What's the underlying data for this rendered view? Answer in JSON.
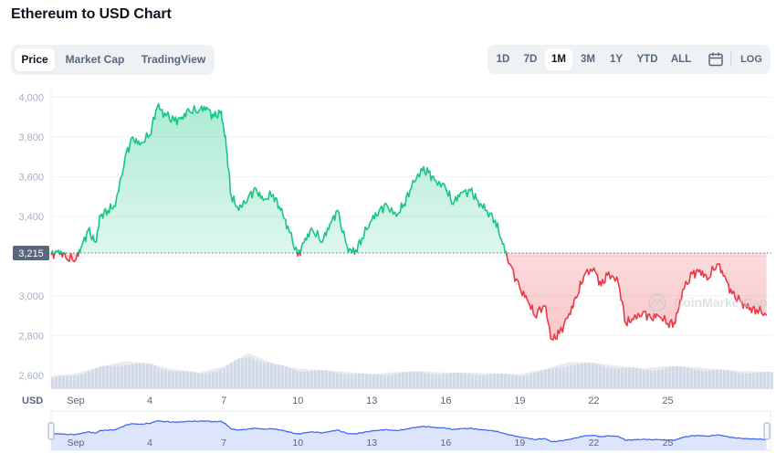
{
  "title": "Ethereum to USD Chart",
  "tabs": [
    "Price",
    "Market Cap",
    "TradingView"
  ],
  "active_tab": "Price",
  "ranges": [
    "1D",
    "7D",
    "1M",
    "3M",
    "1Y",
    "YTD",
    "ALL"
  ],
  "active_range": "1M",
  "log_label": "LOG",
  "icons": {
    "calendar": "calendar-icon",
    "watermark": "coinmarketcap-logo"
  },
  "watermark_text": "CoinMarketCap",
  "colors": {
    "up": "#16c784",
    "down": "#ea3943",
    "volume": "#cfd6e4",
    "navigator": "#d6e0fb",
    "navigator_line": "#3861fb"
  },
  "chart_data": {
    "type": "line",
    "currency_label": "USD",
    "reference_price": 3215,
    "reference_label": "3,215",
    "ylim": [
      2530,
      4020
    ],
    "yticks": [
      2600,
      2800,
      3000,
      3200,
      3400,
      3600,
      3800,
      4000
    ],
    "ytick_labels": [
      "2,600",
      "2,800",
      "3,000",
      "3,200",
      "3,400",
      "3,600",
      "3,800",
      "4,000"
    ],
    "xlim": [
      0,
      29.2
    ],
    "xticks": [
      1,
      4,
      7,
      10,
      13,
      16,
      19,
      22,
      25
    ],
    "xtick_labels": [
      "Sep",
      "4",
      "7",
      "10",
      "13",
      "16",
      "19",
      "22",
      "25"
    ],
    "price": {
      "x": [
        0,
        0.3,
        0.6,
        1.0,
        1.2,
        1.5,
        1.8,
        2.0,
        2.3,
        2.6,
        3.0,
        3.3,
        3.6,
        4.0,
        4.3,
        4.6,
        5.0,
        5.3,
        5.6,
        6.0,
        6.3,
        6.6,
        6.9,
        7.1,
        7.3,
        7.6,
        8.0,
        8.3,
        8.6,
        9.0,
        9.3,
        9.6,
        10.0,
        10.3,
        10.6,
        11.0,
        11.3,
        11.6,
        12.0,
        12.3,
        12.6,
        13.0,
        13.3,
        13.6,
        14.0,
        14.3,
        14.6,
        15.0,
        15.3,
        15.6,
        16.0,
        16.3,
        16.6,
        17.0,
        17.3,
        17.6,
        18.0,
        18.3,
        18.6,
        19.0,
        19.3,
        19.6,
        20.0,
        20.3,
        20.6,
        21.0,
        21.3,
        21.6,
        22.0,
        22.3,
        22.6,
        23.0,
        23.3,
        23.6,
        24.0,
        24.3,
        24.6,
        25.0,
        25.3,
        25.6,
        26.0,
        26.3,
        26.6,
        27.0,
        27.3,
        27.6,
        28.0,
        28.3,
        28.6,
        29.0
      ],
      "y": [
        3205,
        3230,
        3190,
        3180,
        3240,
        3330,
        3270,
        3400,
        3430,
        3450,
        3700,
        3800,
        3760,
        3810,
        3950,
        3920,
        3880,
        3900,
        3930,
        3930,
        3950,
        3900,
        3930,
        3750,
        3500,
        3430,
        3500,
        3540,
        3480,
        3510,
        3430,
        3350,
        3200,
        3290,
        3330,
        3270,
        3360,
        3430,
        3250,
        3210,
        3290,
        3380,
        3430,
        3460,
        3400,
        3460,
        3540,
        3640,
        3620,
        3580,
        3540,
        3460,
        3520,
        3530,
        3480,
        3430,
        3380,
        3260,
        3160,
        3040,
        2980,
        2900,
        2950,
        2780,
        2810,
        2910,
        2990,
        3100,
        3140,
        3050,
        3120,
        3060,
        2860,
        2880,
        2920,
        2890,
        2900,
        2860,
        2860,
        3030,
        3110,
        3130,
        3080,
        3160,
        3100,
        3010,
        2970,
        2930,
        2930,
        2900
      ]
    },
    "volume": {
      "x": [
        0,
        1,
        2,
        3,
        4,
        5,
        6,
        7,
        8,
        9,
        10,
        11,
        12,
        13,
        14,
        15,
        16,
        17,
        18,
        19,
        20,
        21,
        22,
        23,
        24,
        25,
        26,
        27,
        28,
        29
      ],
      "values": [
        0.3,
        0.38,
        0.55,
        0.68,
        0.62,
        0.48,
        0.4,
        0.55,
        0.88,
        0.62,
        0.5,
        0.46,
        0.42,
        0.36,
        0.42,
        0.44,
        0.4,
        0.4,
        0.38,
        0.36,
        0.48,
        0.66,
        0.64,
        0.56,
        0.5,
        0.56,
        0.54,
        0.48,
        0.44,
        0.42
      ]
    }
  }
}
